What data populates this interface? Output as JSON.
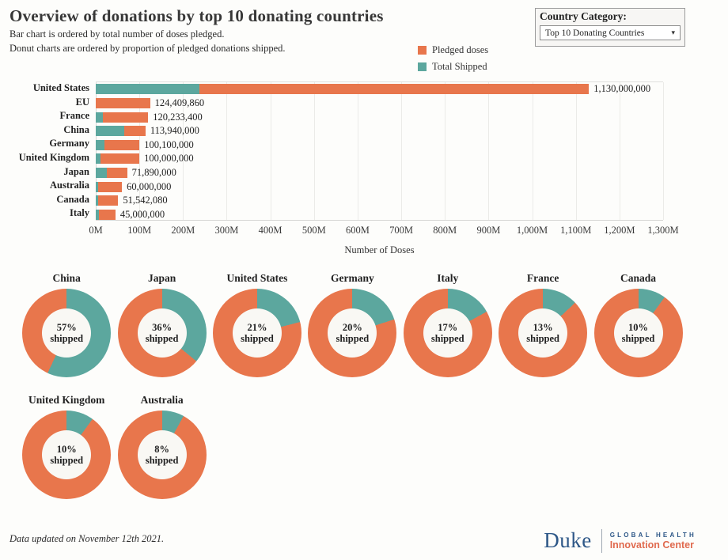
{
  "header": {
    "title": "Overview of donations by top 10 donating countries",
    "subtitle_line1": "Bar chart is ordered by total number of doses pledged.",
    "subtitle_line2": "Donut charts are ordered by proportion of pledged donations shipped."
  },
  "filter": {
    "label": "Country Category:",
    "selected": "Top 10 Donating Countries"
  },
  "colors": {
    "pledged_orange": "#E8764C",
    "shipped_teal": "#5CA79E",
    "gridline": "#ebebe8"
  },
  "legend": {
    "items": [
      {
        "label": "Pledged doses",
        "color": "#E8764C"
      },
      {
        "label": "Total Shipped",
        "color": "#5CA79E"
      }
    ]
  },
  "chart_data": [
    {
      "type": "bar",
      "orientation": "horizontal",
      "stacked": true,
      "title": "",
      "xlabel": "Number of Doses",
      "ylabel": "",
      "xlim": [
        0,
        1300000000
      ],
      "grid": true,
      "x_ticks": [
        "0M",
        "100M",
        "200M",
        "300M",
        "400M",
        "500M",
        "600M",
        "700M",
        "800M",
        "900M",
        "1,000M",
        "1,100M",
        "1,200M",
        "1,300M"
      ],
      "categories": [
        "United States",
        "EU",
        "France",
        "China",
        "Germany",
        "United Kingdom",
        "Japan",
        "Australia",
        "Canada",
        "Italy"
      ],
      "values": [
        1130000000,
        124409860,
        120233400,
        113940000,
        100100000,
        100000000,
        71890000,
        60000000,
        51542080,
        45000000
      ],
      "value_labels": [
        "1,130,000,000",
        "124,409,860",
        "120,233,400",
        "113,940,000",
        "100,100,000",
        "100,000,000",
        "71,890,000",
        "60,000,000",
        "51,542,080",
        "45,000,000"
      ],
      "shipped_pct": [
        21,
        0,
        13,
        57,
        20,
        10,
        36,
        8,
        10,
        17
      ],
      "series_note": "Each bar stacked: Total Shipped (teal, from 0) then remaining Pledged doses (orange)"
    },
    {
      "type": "pie",
      "subtype": "donut",
      "title": "Proportion of pledged donations shipped",
      "center_suffix": "shipped",
      "slice_colors": {
        "shipped": "#5CA79E",
        "unshipped": "#E8764C"
      },
      "slices": [
        {
          "label": "China",
          "pct_shipped": 57
        },
        {
          "label": "Japan",
          "pct_shipped": 36
        },
        {
          "label": "United States",
          "pct_shipped": 21
        },
        {
          "label": "Germany",
          "pct_shipped": 20
        },
        {
          "label": "Italy",
          "pct_shipped": 17
        },
        {
          "label": "France",
          "pct_shipped": 13
        },
        {
          "label": "Canada",
          "pct_shipped": 10
        },
        {
          "label": "United Kingdom",
          "pct_shipped": 10
        },
        {
          "label": "Australia",
          "pct_shipped": 8
        }
      ]
    }
  ],
  "footer": {
    "note": "Data updated on November 12th 2021.",
    "logo": {
      "wordmark": "Duke",
      "line1": "GLOBAL HEALTH",
      "line2": "Innovation Center",
      "navy": "#2d5787",
      "orange": "#e06a4e"
    }
  }
}
